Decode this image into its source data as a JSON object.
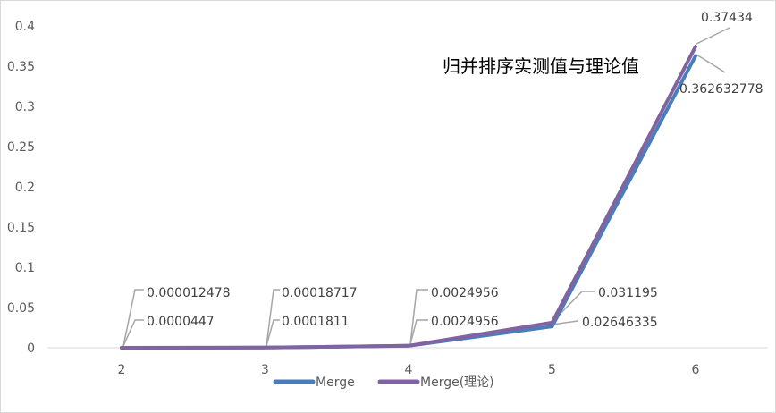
{
  "chart_data": {
    "type": "line",
    "title": "归并排序实测值与理论值",
    "xlabel": "",
    "ylabel": "",
    "categories": [
      "2",
      "3",
      "4",
      "5",
      "6"
    ],
    "ylim": [
      0,
      0.4
    ],
    "yticks": [
      "0",
      "0.05",
      "0.1",
      "0.15",
      "0.2",
      "0.25",
      "0.3",
      "0.35",
      "0.4"
    ],
    "grid": false,
    "legend_position": "bottom",
    "series": [
      {
        "name": "Merge",
        "color": "#4a7ebb",
        "values": [
          4.47e-05,
          0.0001811,
          0.0024956,
          0.02646335,
          0.362632778
        ],
        "labels": [
          "0.0000447",
          "0.0001811",
          "0.0024956",
          "0.02646335",
          "0.362632778"
        ]
      },
      {
        "name": "Merge(理论)",
        "color": "#8064a2",
        "values": [
          1.2478e-05,
          0.00018717,
          0.0024956,
          0.031195,
          0.37434
        ],
        "labels": [
          "0.000012478",
          "0.00018717",
          "0.0024956",
          "0.031195",
          "0.37434"
        ]
      }
    ]
  }
}
